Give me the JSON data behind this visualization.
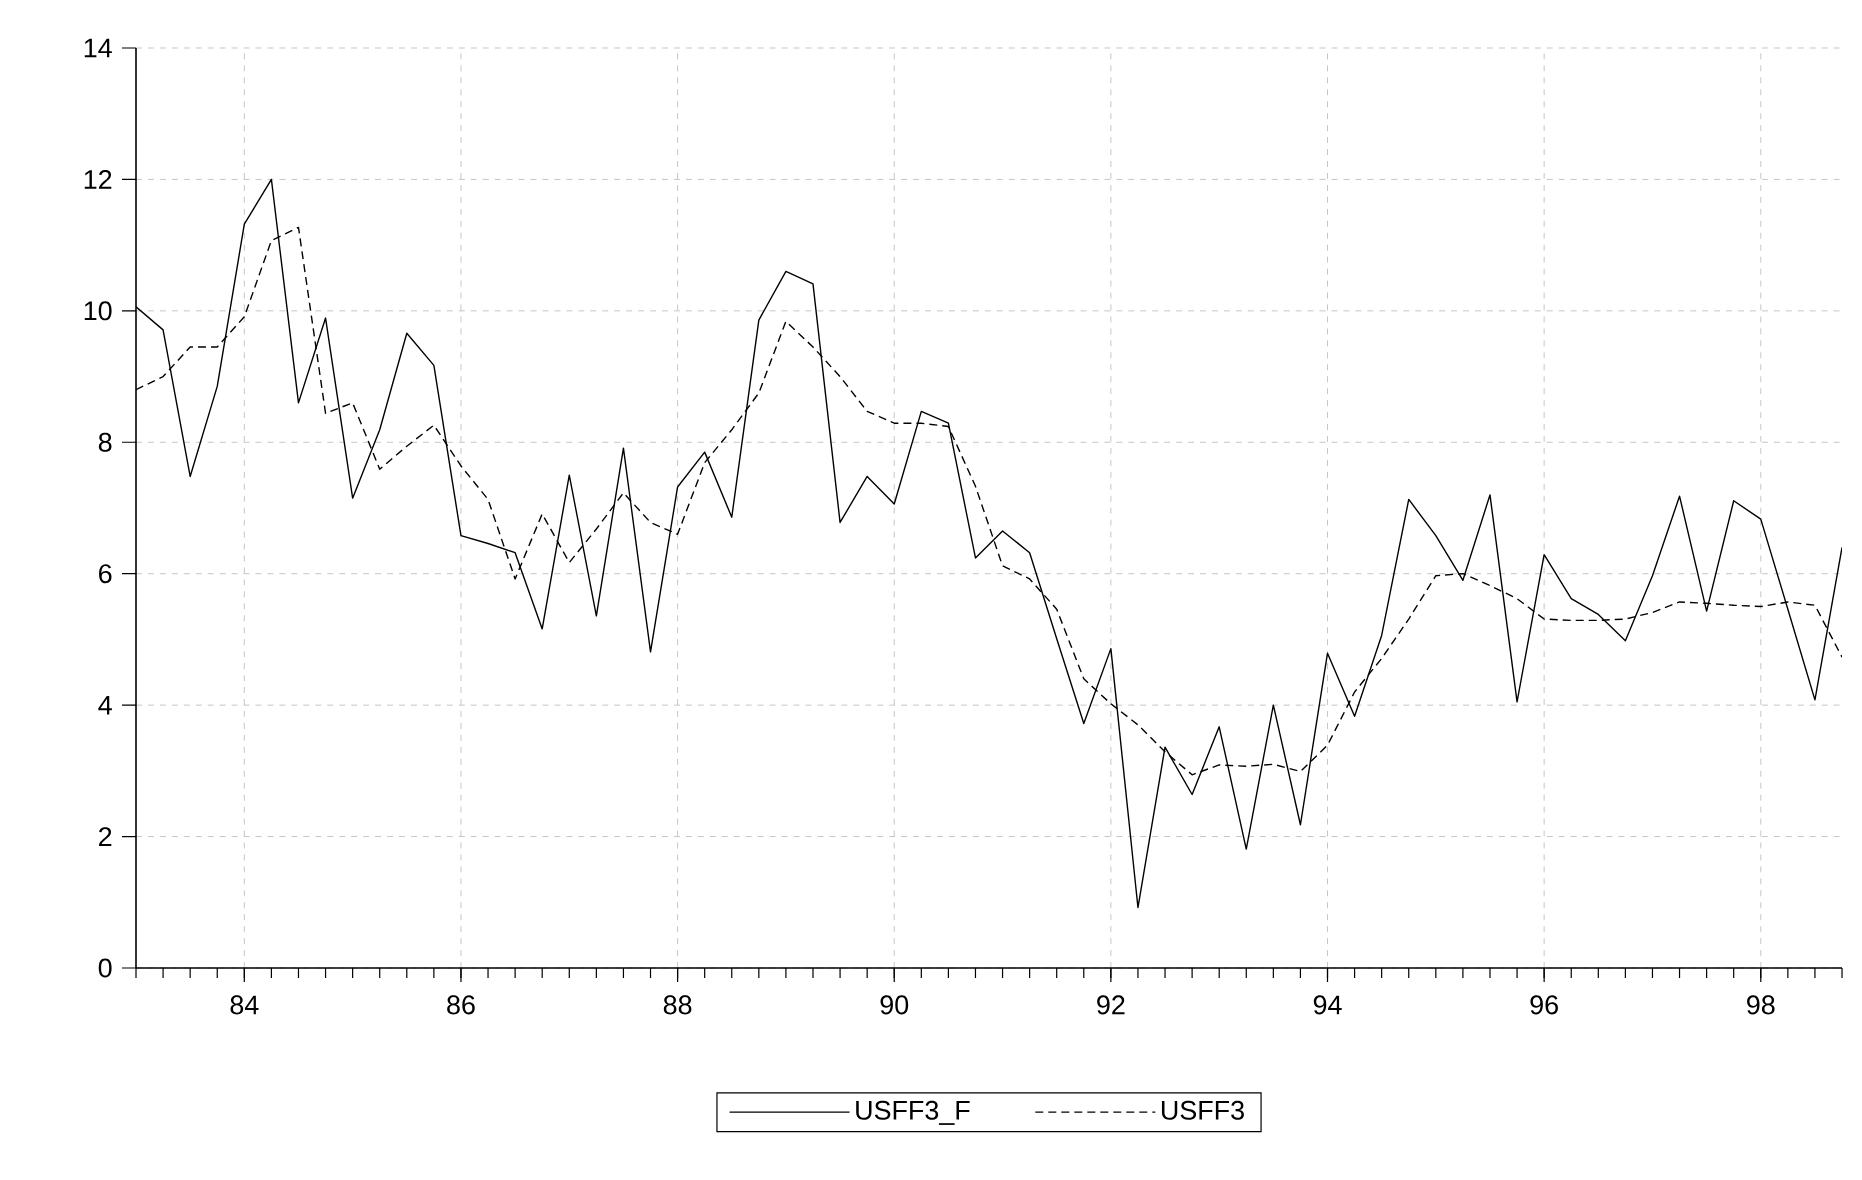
{
  "chart_data": {
    "type": "line",
    "x": [
      83,
      83.25,
      83.5,
      83.75,
      84,
      84.25,
      84.5,
      84.75,
      85,
      85.25,
      85.5,
      85.75,
      86,
      86.25,
      86.5,
      86.75,
      87,
      87.25,
      87.5,
      87.75,
      88,
      88.25,
      88.5,
      88.75,
      89,
      89.25,
      89.5,
      89.75,
      90,
      90.25,
      90.5,
      90.75,
      91,
      91.25,
      91.5,
      91.75,
      92,
      92.25,
      92.5,
      92.75,
      93,
      93.25,
      93.5,
      93.75,
      94,
      94.25,
      94.5,
      94.75,
      95,
      95.25,
      95.5,
      95.75,
      96,
      96.25,
      96.5,
      96.75,
      97,
      97.25,
      97.5,
      97.75,
      98,
      98.25,
      98.5,
      98.75
    ],
    "series": [
      {
        "name": "USFF3_F",
        "color": "#000000",
        "line_style": "solid",
        "values": [
          10.06,
          9.71,
          7.48,
          8.85,
          11.32,
          12.0,
          8.6,
          9.89,
          7.15,
          8.19,
          9.66,
          9.17,
          6.58,
          6.46,
          6.32,
          5.16,
          7.5,
          5.36,
          7.91,
          4.81,
          7.32,
          7.85,
          6.86,
          9.86,
          10.6,
          10.41,
          6.78,
          7.48,
          7.06,
          8.47,
          8.29,
          6.24,
          6.65,
          6.32,
          5.01,
          3.72,
          4.86,
          0.92,
          3.36,
          2.64,
          3.67,
          1.81,
          4.0,
          2.18,
          4.79,
          3.83,
          5.06,
          7.13,
          6.58,
          5.9,
          7.2,
          4.05,
          6.29,
          5.62,
          5.38,
          4.98,
          5.97,
          7.18,
          5.43,
          7.11,
          6.83,
          5.46,
          4.08,
          6.4
        ]
      },
      {
        "name": "USFF3",
        "color": "#000000",
        "line_style": "dashed",
        "values": [
          8.8,
          9.0,
          9.45,
          9.45,
          9.91,
          11.07,
          11.27,
          8.44,
          8.6,
          7.59,
          7.94,
          8.26,
          7.64,
          7.13,
          5.92,
          6.91,
          6.17,
          6.68,
          7.23,
          6.78,
          6.6,
          7.69,
          8.19,
          8.75,
          9.84,
          9.45,
          9.0,
          8.47,
          8.29,
          8.29,
          8.24,
          7.33,
          6.12,
          5.92,
          5.46,
          4.4,
          4.02,
          3.7,
          3.29,
          2.94,
          3.09,
          3.07,
          3.1,
          2.99,
          3.39,
          4.2,
          4.71,
          5.31,
          5.97,
          6.0,
          5.82,
          5.62,
          5.31,
          5.29,
          5.29,
          5.31,
          5.41,
          5.57,
          5.55,
          5.52,
          5.5,
          5.57,
          5.52,
          4.73
        ]
      }
    ],
    "xlim": [
      83,
      98.75
    ],
    "ylim": [
      0,
      14
    ],
    "xticks": [
      84,
      86,
      88,
      90,
      92,
      94,
      96,
      98
    ],
    "yticks": [
      0,
      2,
      4,
      6,
      8,
      10,
      12,
      14
    ],
    "grid": true,
    "legend": "bottom"
  }
}
